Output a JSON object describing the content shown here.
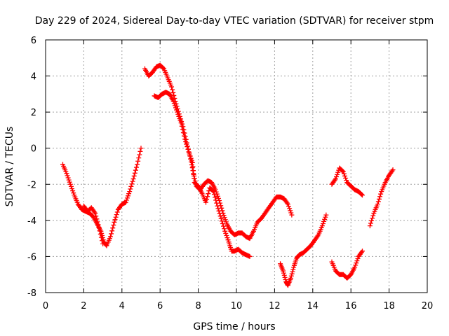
{
  "chart_data": {
    "type": "scatter",
    "title": "Day 229 of 2024, Sidereal Day-to-day VTEC variation (SDTVAR) for receiver stpm",
    "xlabel": "GPS time / hours",
    "ylabel": "SDTVAR / TECUs",
    "xlim": [
      0,
      20
    ],
    "ylim": [
      -8,
      6
    ],
    "xticks": [
      "0",
      "2",
      "4",
      "6",
      "8",
      "10",
      "12",
      "14",
      "16",
      "18",
      "20"
    ],
    "yticks": [
      "-8",
      "-6",
      "-4",
      "-2",
      "0",
      "2",
      "4",
      "6"
    ],
    "grid": true,
    "marker": "+",
    "color": "#ff0000",
    "series": [
      {
        "points": [
          [
            0.9,
            -0.9
          ],
          [
            1.1,
            -1.4
          ],
          [
            1.3,
            -2.0
          ],
          [
            1.5,
            -2.6
          ],
          [
            1.7,
            -3.1
          ],
          [
            1.9,
            -3.4
          ],
          [
            2.1,
            -3.5
          ],
          [
            2.3,
            -3.6
          ],
          [
            2.5,
            -3.8
          ],
          [
            2.7,
            -4.2
          ],
          [
            2.9,
            -4.6
          ],
          [
            3.05,
            -5.2
          ],
          [
            3.2,
            -5.4
          ],
          [
            3.4,
            -4.9
          ],
          [
            3.6,
            -4.1
          ],
          [
            3.8,
            -3.4
          ],
          [
            4.0,
            -3.1
          ],
          [
            4.2,
            -3.0
          ],
          [
            4.4,
            -2.4
          ],
          [
            4.6,
            -1.7
          ],
          [
            4.8,
            -0.9
          ],
          [
            5.0,
            0.0
          ]
        ]
      },
      {
        "points": [
          [
            2.0,
            -3.2
          ],
          [
            2.2,
            -3.5
          ],
          [
            2.4,
            -3.3
          ],
          [
            2.6,
            -3.6
          ],
          [
            2.8,
            -4.4
          ],
          [
            3.0,
            -5.3
          ]
        ]
      },
      {
        "points": [
          [
            5.2,
            4.4
          ],
          [
            5.4,
            4.0
          ],
          [
            5.6,
            4.2
          ],
          [
            5.8,
            4.5
          ],
          [
            6.0,
            4.6
          ],
          [
            6.2,
            4.4
          ],
          [
            6.4,
            3.9
          ],
          [
            6.6,
            3.4
          ],
          [
            6.8,
            2.6
          ],
          [
            7.0,
            1.9
          ],
          [
            7.2,
            1.2
          ],
          [
            7.4,
            0.3
          ],
          [
            7.6,
            -0.6
          ],
          [
            7.75,
            -1.4
          ],
          [
            7.9,
            -2.1
          ],
          [
            8.1,
            -2.3
          ],
          [
            8.3,
            -2.0
          ],
          [
            8.5,
            -1.8
          ],
          [
            8.7,
            -1.9
          ],
          [
            8.9,
            -2.3
          ],
          [
            9.1,
            -2.9
          ],
          [
            9.3,
            -3.6
          ],
          [
            9.5,
            -4.2
          ],
          [
            9.7,
            -4.6
          ],
          [
            9.9,
            -4.8
          ],
          [
            10.1,
            -4.7
          ],
          [
            10.3,
            -4.7
          ],
          [
            10.5,
            -4.9
          ],
          [
            10.7,
            -5.0
          ],
          [
            10.9,
            -4.6
          ],
          [
            11.1,
            -4.1
          ],
          [
            11.3,
            -3.9
          ],
          [
            11.5,
            -3.6
          ],
          [
            11.7,
            -3.3
          ],
          [
            11.9,
            -3.0
          ],
          [
            12.1,
            -2.7
          ],
          [
            12.3,
            -2.7
          ],
          [
            12.5,
            -2.8
          ],
          [
            12.7,
            -3.1
          ],
          [
            12.9,
            -3.7
          ]
        ]
      },
      {
        "points": [
          [
            5.7,
            2.9
          ],
          [
            5.9,
            2.8
          ],
          [
            6.1,
            3.0
          ],
          [
            6.3,
            3.1
          ],
          [
            6.5,
            3.0
          ],
          [
            6.7,
            2.6
          ],
          [
            6.9,
            2.0
          ],
          [
            7.1,
            1.4
          ],
          [
            7.3,
            0.5
          ],
          [
            7.5,
            -0.2
          ],
          [
            7.7,
            -0.8
          ],
          [
            7.8,
            -1.9
          ],
          [
            8.0,
            -2.1
          ],
          [
            8.2,
            -2.5
          ],
          [
            8.4,
            -3.0
          ],
          [
            8.6,
            -2.2
          ],
          [
            8.8,
            -2.4
          ],
          [
            9.0,
            -3.2
          ],
          [
            9.2,
            -3.9
          ],
          [
            9.4,
            -4.6
          ],
          [
            9.6,
            -5.2
          ],
          [
            9.75,
            -5.7
          ],
          [
            9.9,
            -5.7
          ],
          [
            10.1,
            -5.6
          ],
          [
            10.3,
            -5.8
          ],
          [
            10.5,
            -5.9
          ],
          [
            10.7,
            -6.0
          ]
        ]
      },
      {
        "points": [
          [
            12.3,
            -6.4
          ],
          [
            12.45,
            -6.8
          ],
          [
            12.6,
            -7.4
          ],
          [
            12.7,
            -7.6
          ],
          [
            12.85,
            -7.2
          ],
          [
            13.0,
            -6.6
          ],
          [
            13.15,
            -6.1
          ],
          [
            13.3,
            -5.9
          ],
          [
            13.5,
            -5.8
          ],
          [
            13.7,
            -5.6
          ],
          [
            13.9,
            -5.4
          ],
          [
            14.1,
            -5.1
          ],
          [
            14.3,
            -4.8
          ],
          [
            14.5,
            -4.3
          ],
          [
            14.7,
            -3.7
          ]
        ]
      },
      {
        "points": [
          [
            15.0,
            -2.0
          ],
          [
            15.2,
            -1.7
          ],
          [
            15.4,
            -1.1
          ],
          [
            15.6,
            -1.3
          ],
          [
            15.8,
            -1.9
          ],
          [
            16.0,
            -2.1
          ],
          [
            16.2,
            -2.3
          ],
          [
            16.4,
            -2.4
          ],
          [
            16.6,
            -2.6
          ]
        ]
      },
      {
        "points": [
          [
            15.0,
            -6.3
          ],
          [
            15.2,
            -6.8
          ],
          [
            15.4,
            -7.0
          ],
          [
            15.6,
            -7.0
          ],
          [
            15.8,
            -7.2
          ],
          [
            16.0,
            -7.0
          ],
          [
            16.2,
            -6.6
          ],
          [
            16.4,
            -6.0
          ],
          [
            16.6,
            -5.7
          ]
        ]
      },
      {
        "points": [
          [
            17.0,
            -4.3
          ],
          [
            17.2,
            -3.6
          ],
          [
            17.4,
            -3.1
          ],
          [
            17.6,
            -2.4
          ],
          [
            17.8,
            -1.9
          ],
          [
            18.0,
            -1.5
          ],
          [
            18.2,
            -1.2
          ]
        ]
      }
    ]
  }
}
